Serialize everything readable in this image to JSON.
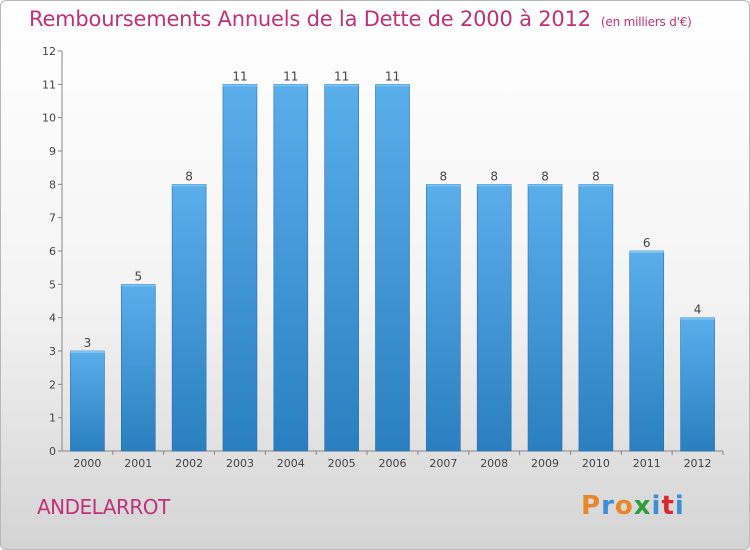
{
  "header": {
    "title": "Remboursements Annuels de la Dette de 2000 à 2012",
    "unit": "(en milliers d'€)"
  },
  "footer": {
    "commune": "ANDELARROT",
    "logo_letters": [
      "P",
      "r",
      "o",
      "x",
      "i",
      "t",
      "i"
    ],
    "logo_colors": [
      "#e8862a",
      "#3a8fd6",
      "#e8862a",
      "#2e9e3e",
      "#3a8fd6",
      "#d9262f",
      "#3a8fd6"
    ]
  },
  "colors": {
    "bar_top": "#5aaeea",
    "bar_bottom": "#2a7fc0",
    "title": "#c0317a"
  },
  "chart_data": {
    "type": "bar",
    "categories": [
      "2000",
      "2001",
      "2002",
      "2003",
      "2004",
      "2005",
      "2006",
      "2007",
      "2008",
      "2009",
      "2010",
      "2011",
      "2012"
    ],
    "values": [
      3,
      5,
      8,
      11,
      11,
      11,
      11,
      8,
      8,
      8,
      8,
      6,
      4
    ],
    "title": "Remboursements Annuels de la Dette de 2000 à 2012",
    "xlabel": "",
    "ylabel": "",
    "ylim": [
      0,
      12
    ],
    "yticks": [
      0,
      1,
      2,
      3,
      4,
      5,
      6,
      7,
      8,
      9,
      10,
      11,
      12
    ],
    "grid": false,
    "data_labels": true
  }
}
